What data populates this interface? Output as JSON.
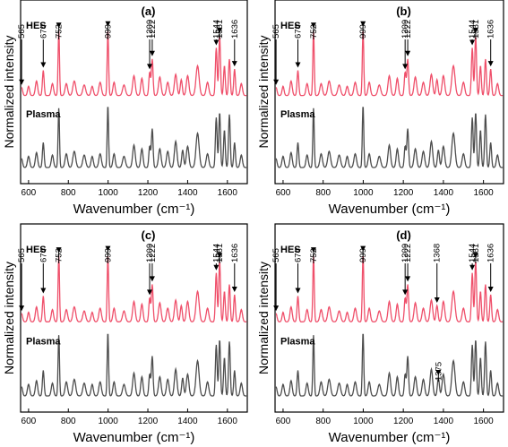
{
  "chart_data": [
    {
      "type": "line",
      "panel": "(a)",
      "xlabel": "Wavenumber (cm⁻¹)",
      "ylabel": "Normalized intensity",
      "xlim": [
        560,
        1700
      ],
      "xticks": [
        600,
        800,
        1000,
        1200,
        1400,
        1600
      ],
      "grid": false,
      "series": [
        {
          "name": "HES",
          "color": "#ef4f6a",
          "annotations": [
            565,
            674,
            752,
            999,
            1209,
            1222,
            1561,
            1544,
            1636
          ]
        },
        {
          "name": "Plasma",
          "color": "#4d4d4d",
          "annotations": []
        }
      ]
    },
    {
      "type": "line",
      "panel": "(b)",
      "xlabel": "Wavenumber (cm⁻¹)",
      "ylabel": "Normalized intensity",
      "xlim": [
        560,
        1700
      ],
      "xticks": [
        600,
        800,
        1000,
        1200,
        1400,
        1600
      ],
      "grid": false,
      "series": [
        {
          "name": "HES",
          "color": "#ef4f6a",
          "annotations": [
            565,
            674,
            752,
            999,
            1209,
            1222,
            1561,
            1544,
            1636
          ]
        },
        {
          "name": "Plasma",
          "color": "#4d4d4d",
          "annotations": []
        }
      ]
    },
    {
      "type": "line",
      "panel": "(c)",
      "xlabel": "Wavenumber (cm⁻¹)",
      "ylabel": "Normalized intensity",
      "xlim": [
        560,
        1700
      ],
      "xticks": [
        600,
        800,
        1000,
        1200,
        1400,
        1600
      ],
      "grid": false,
      "series": [
        {
          "name": "HES",
          "color": "#ef4f6a",
          "annotations": [
            565,
            674,
            752,
            999,
            1209,
            1222,
            1561,
            1544,
            1636
          ]
        },
        {
          "name": "Plasma",
          "color": "#4d4d4d",
          "annotations": []
        }
      ]
    },
    {
      "type": "line",
      "panel": "(d)",
      "xlabel": "Wavenumber (cm⁻¹)",
      "ylabel": "Normalized intensity",
      "xlim": [
        560,
        1700
      ],
      "xticks": [
        600,
        800,
        1000,
        1200,
        1400,
        1600
      ],
      "grid": false,
      "series": [
        {
          "name": "HES",
          "color": "#ef4f6a",
          "annotations": [
            565,
            674,
            752,
            999,
            1209,
            1222,
            1368,
            1561,
            1544,
            1636
          ]
        },
        {
          "name": "Plasma",
          "color": "#4d4d4d",
          "annotations": [
            1375
          ]
        }
      ]
    }
  ]
}
